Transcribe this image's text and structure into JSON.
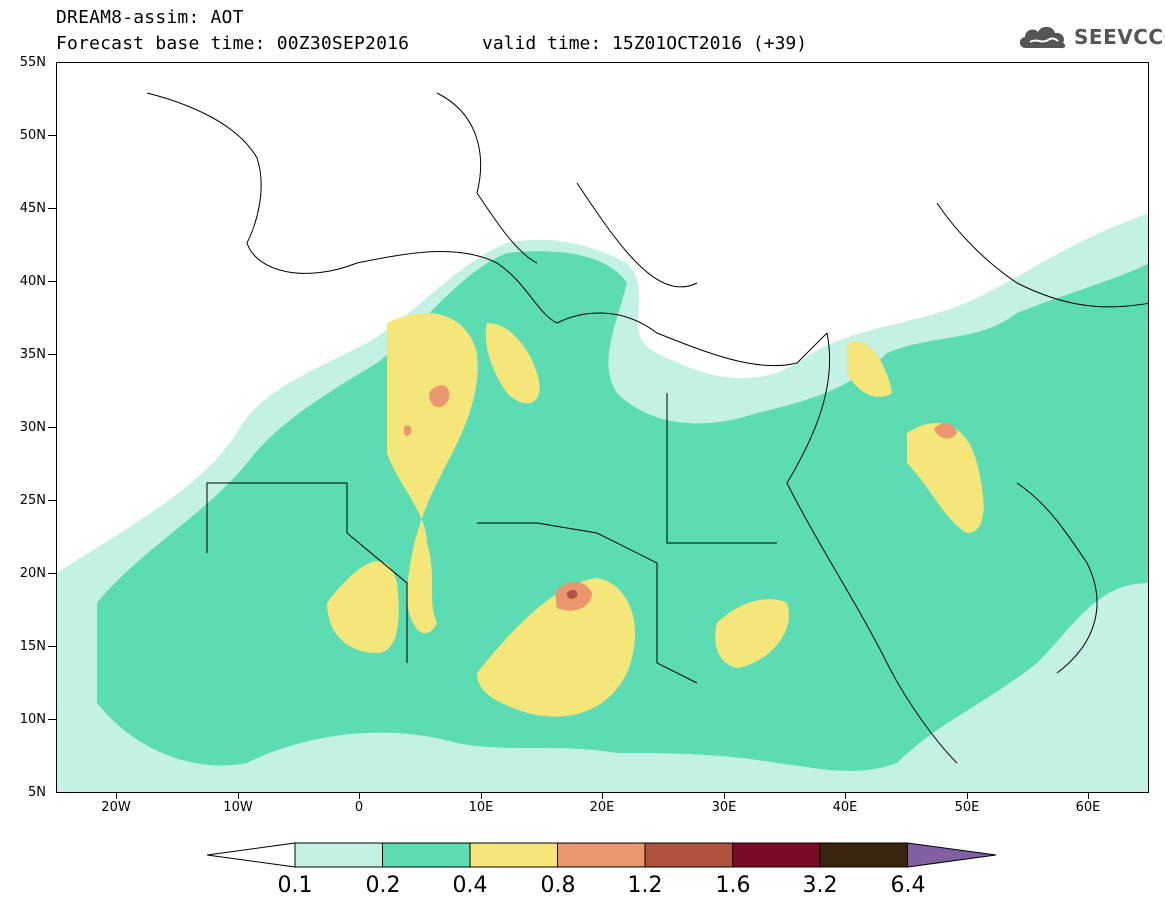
{
  "header": {
    "title": "DREAM8-assim: AOT",
    "base_time": "Forecast base time: 00Z30SEP2016",
    "valid_time": "valid time: 15Z01OCT2016 (+39)",
    "logo_text": "SEEVCCC",
    "logo_icon": "cloud-icon"
  },
  "map": {
    "lat_labels": [
      "55N",
      "50N",
      "45N",
      "40N",
      "35N",
      "30N",
      "25N",
      "20N",
      "15N",
      "10N",
      "5N"
    ],
    "lon_labels": [
      "20W",
      "10W",
      "0",
      "10E",
      "20E",
      "30E",
      "40E",
      "50E",
      "60E"
    ],
    "land_color": "#ffffff",
    "border_color": "#000000"
  },
  "colorbar": {
    "labels": [
      "0.1",
      "0.2",
      "0.4",
      "0.8",
      "1.2",
      "1.6",
      "3.2",
      "6.4"
    ],
    "colors": [
      "#c4f1e6",
      "#5cdcb2",
      "#f5e67a",
      "#ec9670",
      "#b05440",
      "#7a0a24",
      "#3a2410",
      "#8060a0"
    ]
  }
}
